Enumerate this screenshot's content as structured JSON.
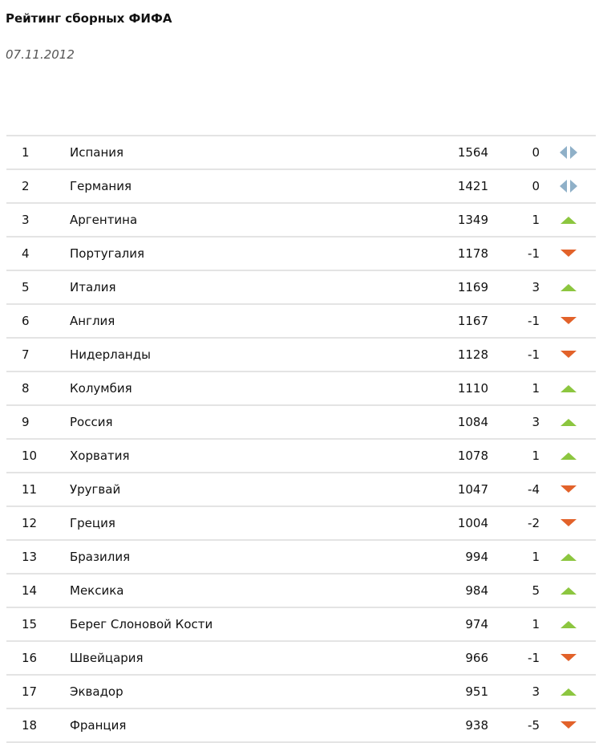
{
  "title": "Рейтинг сборных ФИФА",
  "date": "07.11.2012",
  "colors": {
    "up": "#8cc63f",
    "down": "#e2622a",
    "same": "#8fb0c8"
  },
  "rows": [
    {
      "rank": "1",
      "name": "Испания",
      "points": "1564",
      "change": "0",
      "trend": "same"
    },
    {
      "rank": "2",
      "name": "Германия",
      "points": "1421",
      "change": "0",
      "trend": "same"
    },
    {
      "rank": "3",
      "name": "Аргентина",
      "points": "1349",
      "change": "1",
      "trend": "up"
    },
    {
      "rank": "4",
      "name": "Португалия",
      "points": "1178",
      "change": "-1",
      "trend": "down"
    },
    {
      "rank": "5",
      "name": "Италия",
      "points": "1169",
      "change": "3",
      "trend": "up"
    },
    {
      "rank": "6",
      "name": "Англия",
      "points": "1167",
      "change": "-1",
      "trend": "down"
    },
    {
      "rank": "7",
      "name": "Нидерланды",
      "points": "1128",
      "change": "-1",
      "trend": "down"
    },
    {
      "rank": "8",
      "name": "Колумбия",
      "points": "1110",
      "change": "1",
      "trend": "up"
    },
    {
      "rank": "9",
      "name": "Россия",
      "points": "1084",
      "change": "3",
      "trend": "up"
    },
    {
      "rank": "10",
      "name": "Хорватия",
      "points": "1078",
      "change": "1",
      "trend": "up"
    },
    {
      "rank": "11",
      "name": "Уругвай",
      "points": "1047",
      "change": "-4",
      "trend": "down"
    },
    {
      "rank": "12",
      "name": "Греция",
      "points": "1004",
      "change": "-2",
      "trend": "down"
    },
    {
      "rank": "13",
      "name": "Бразилия",
      "points": "994",
      "change": "1",
      "trend": "up"
    },
    {
      "rank": "14",
      "name": "Мексика",
      "points": "984",
      "change": "5",
      "trend": "up"
    },
    {
      "rank": "15",
      "name": "Берег Слоновой Кости",
      "points": "974",
      "change": "1",
      "trend": "up"
    },
    {
      "rank": "16",
      "name": "Швейцария",
      "points": "966",
      "change": "-1",
      "trend": "down"
    },
    {
      "rank": "17",
      "name": "Эквадор",
      "points": "951",
      "change": "3",
      "trend": "up"
    },
    {
      "rank": "18",
      "name": "Франция",
      "points": "938",
      "change": "-5",
      "trend": "down"
    }
  ]
}
